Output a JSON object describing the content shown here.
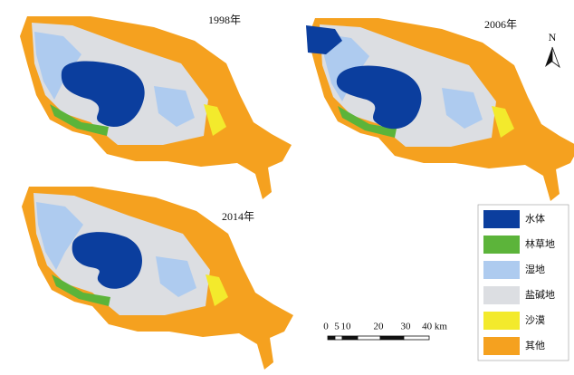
{
  "panels": [
    {
      "label": "1998年"
    },
    {
      "label": "2006年"
    },
    {
      "label": "2014年"
    }
  ],
  "north": "N",
  "legend": [
    {
      "label": "水体",
      "color": "#0b3e9e"
    },
    {
      "label": "林草地",
      "color": "#5cb43a"
    },
    {
      "label": "湿地",
      "color": "#aecbef"
    },
    {
      "label": "盐碱地",
      "color": "#dcdee2"
    },
    {
      "label": "沙漠",
      "color": "#f3ea2c"
    },
    {
      "label": "其他",
      "color": "#f5a11f"
    }
  ],
  "scale_bar": {
    "labels": [
      "0",
      "5",
      "10",
      "20",
      "30",
      "40 km"
    ]
  }
}
